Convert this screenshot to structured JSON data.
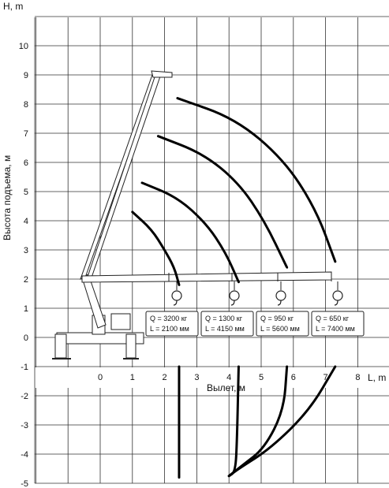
{
  "chart_data": {
    "type": "line",
    "title": "",
    "ylabel": "Высота подъема, м",
    "ylabel_top": "H, m",
    "xlabel": "Вылет, м",
    "xlabel_right": "L, m",
    "y_ticks": [
      "10",
      "9",
      "8",
      "7",
      "6",
      "5",
      "4",
      "3",
      "2",
      "1",
      "0",
      "-1",
      "-2",
      "-3",
      "-4",
      "-5"
    ],
    "x_ticks": [
      "0",
      "1",
      "2",
      "3",
      "4",
      "5",
      "6",
      "7",
      "8"
    ],
    "ylim": [
      -5,
      11
    ],
    "xlim": [
      -3,
      9
    ],
    "series": [
      {
        "name": "Q = 3200 кг / L = 2100 мм",
        "q": "Q = 3200 кг",
        "l": "L  =  2100 мм",
        "x": [
          1.0,
          1.6,
          2.0,
          2.3,
          2.45
        ],
        "y": [
          4.3,
          3.7,
          3.0,
          2.4,
          1.8
        ]
      },
      {
        "name": "Q = 1300 кг / L = 4150 мм",
        "q": "Q = 1300 кг",
        "l": "L  =  4150 мм",
        "x": [
          1.3,
          2.4,
          3.3,
          3.9,
          4.3
        ],
        "y": [
          5.3,
          4.8,
          3.9,
          2.9,
          1.9
        ]
      },
      {
        "name": "Q = 950 кг / L = 5600 мм",
        "q": "Q = 950 кг",
        "l": "L  =  5600 мм",
        "x": [
          1.8,
          3.2,
          4.3,
          5.1,
          5.8
        ],
        "y": [
          6.9,
          6.3,
          5.3,
          4.0,
          2.4
        ]
      },
      {
        "name": "Q = 650 кг / L = 7400 мм",
        "q": "Q = 650 кг",
        "l": "L  =  7400 мм",
        "x": [
          2.4,
          4.2,
          5.7,
          6.7,
          7.3
        ],
        "y": [
          8.2,
          7.5,
          6.1,
          4.4,
          2.6
        ]
      }
    ],
    "below_ground": [
      {
        "x": [
          2.45,
          2.45
        ],
        "y": [
          -1.0,
          -4.8
        ]
      },
      {
        "x": [
          4.3,
          4.25,
          4.2,
          4.0
        ],
        "y": [
          -1.0,
          -3.5,
          -4.6,
          -4.75
        ]
      },
      {
        "x": [
          5.8,
          5.7,
          5.1,
          4.4,
          4.0
        ],
        "y": [
          -1.0,
          -2.5,
          -3.8,
          -4.4,
          -4.75
        ]
      },
      {
        "x": [
          7.3,
          6.5,
          5.3,
          4.3,
          4.0
        ],
        "y": [
          -1.0,
          -2.5,
          -3.8,
          -4.5,
          -4.75
        ]
      }
    ]
  }
}
